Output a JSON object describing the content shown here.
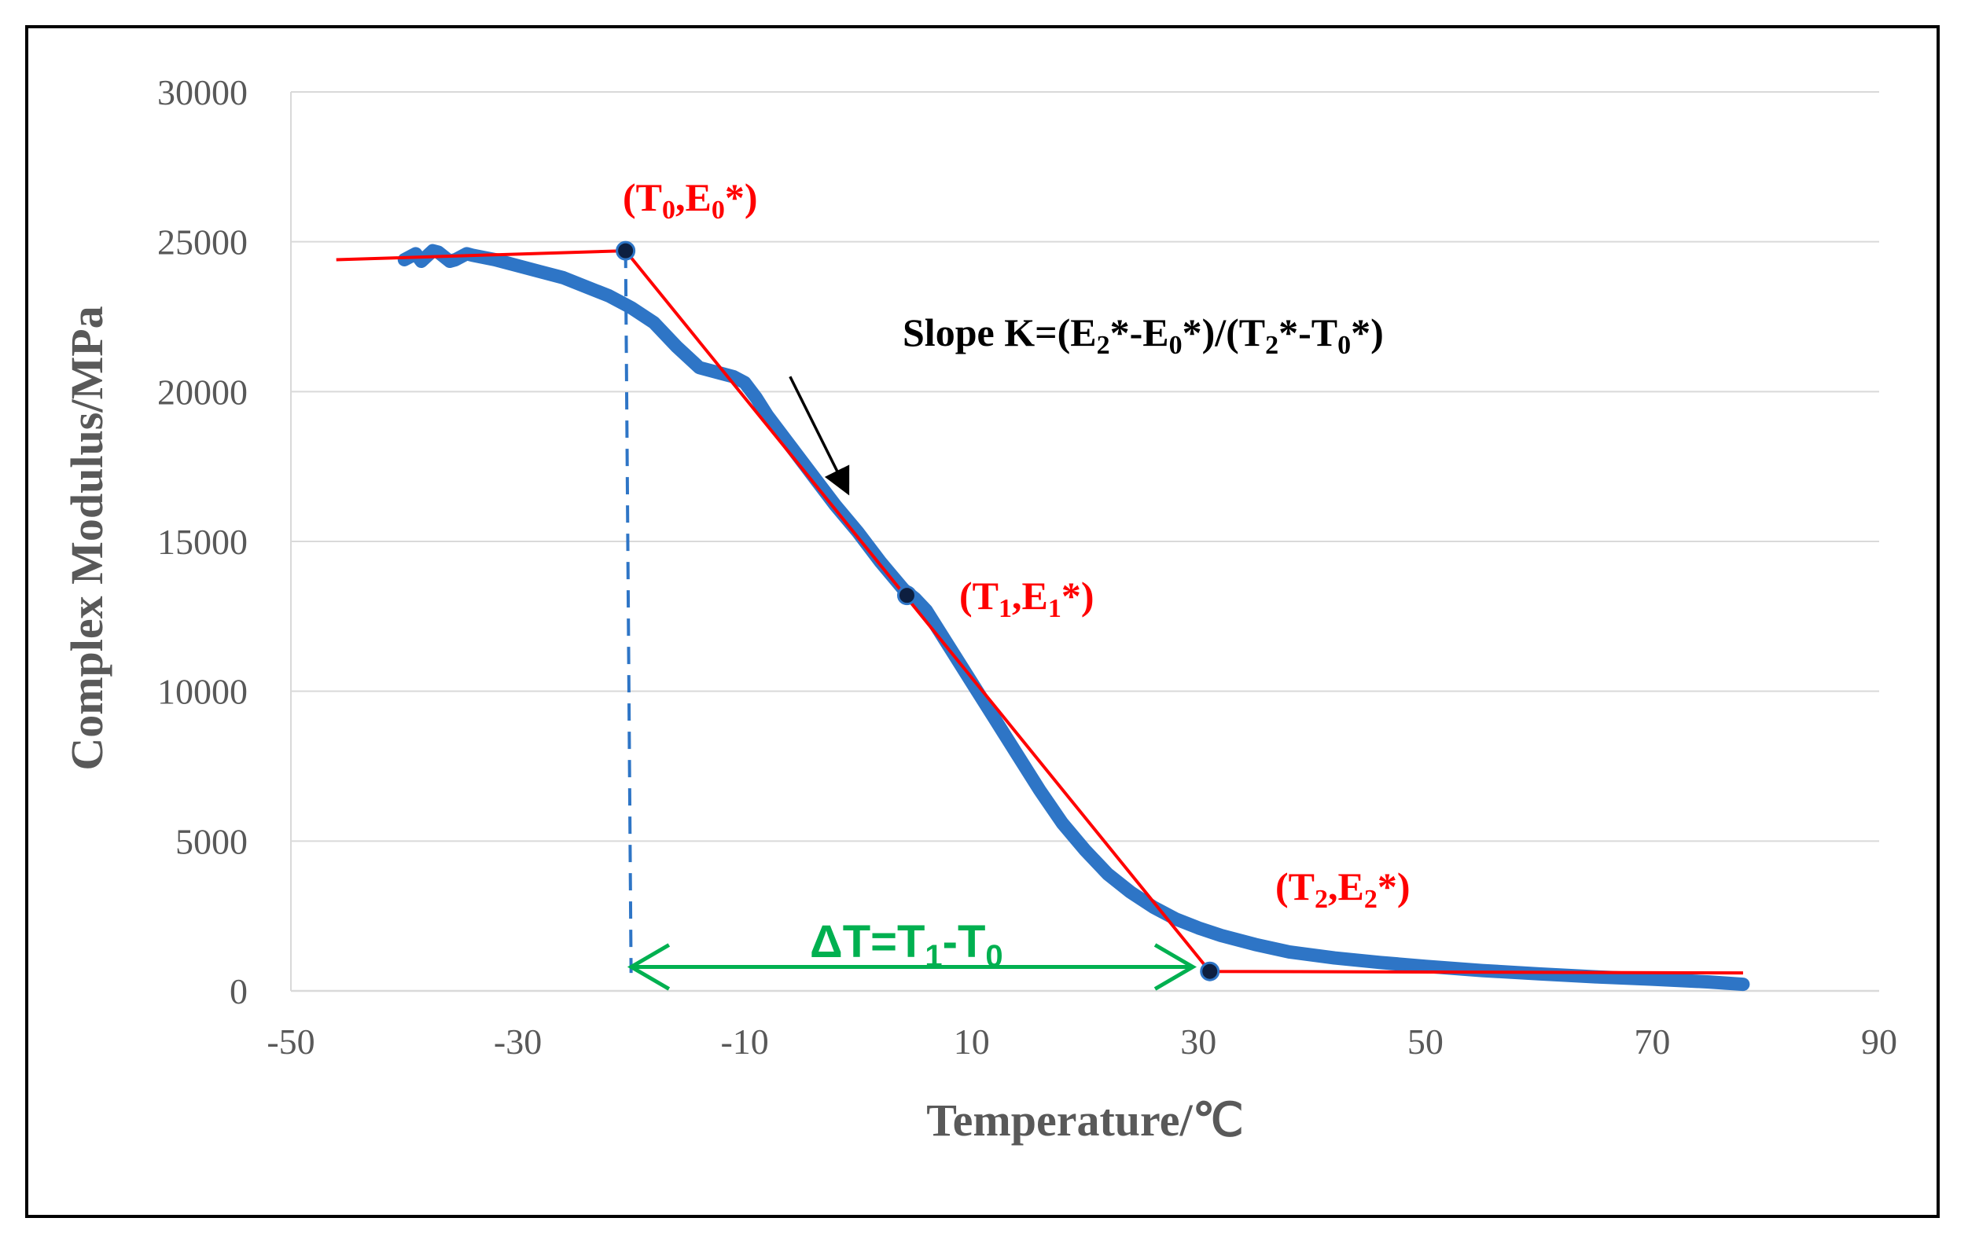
{
  "chart_data": {
    "type": "line",
    "title": "",
    "xlabel": "Temperature/℃",
    "ylabel": "Complex Modulus/MPa",
    "xlim": [
      -50,
      90
    ],
    "ylim": [
      0,
      30000
    ],
    "x_ticks": [
      -50,
      -30,
      -10,
      10,
      30,
      50,
      70,
      90
    ],
    "y_ticks": [
      0,
      5000,
      10000,
      15000,
      20000,
      25000,
      30000
    ],
    "grid": true,
    "series": [
      {
        "name": "Complex modulus",
        "color": "#2e75c6",
        "x": [
          -40,
          -39,
          -38.5,
          -37.5,
          -37,
          -36,
          -35.5,
          -34.5,
          -34,
          -32,
          -30,
          -28,
          -26,
          -24,
          -22,
          -20,
          -18,
          -16,
          -14,
          -12,
          -11,
          -10,
          -9,
          -8,
          -6,
          -4,
          -2,
          0,
          2,
          4,
          5,
          6,
          8,
          10,
          12,
          14,
          16,
          18,
          20,
          22,
          24,
          26,
          28,
          30,
          32,
          35,
          38,
          42,
          46,
          50,
          55,
          60,
          65,
          70,
          75,
          78
        ],
        "y": [
          24400,
          24600,
          24350,
          24700,
          24650,
          24350,
          24400,
          24600,
          24550,
          24400,
          24200,
          24000,
          23800,
          23500,
          23200,
          22800,
          22300,
          21500,
          20800,
          20600,
          20500,
          20300,
          19800,
          19200,
          18200,
          17200,
          16200,
          15300,
          14300,
          13400,
          13100,
          12700,
          11500,
          10300,
          9100,
          7900,
          6700,
          5600,
          4700,
          3900,
          3300,
          2800,
          2400,
          2100,
          1850,
          1550,
          1300,
          1100,
          950,
          820,
          680,
          570,
          470,
          390,
          300,
          220
        ]
      },
      {
        "name": "Tangent lines",
        "color": "#ff0000",
        "x": [
          -46,
          -20.5,
          31,
          78
        ],
        "y": [
          24400,
          24700,
          650,
          600
        ]
      }
    ],
    "key_points": [
      {
        "label": "T0",
        "x": -20.5,
        "y": 24700
      },
      {
        "label": "T1",
        "x": 4.3,
        "y": 13200
      },
      {
        "label": "T2",
        "x": 31,
        "y": 650
      }
    ],
    "vertical_marker": {
      "x": -20.5,
      "y_top": 24700,
      "y_bottom": 600,
      "color": "#2e75c6"
    },
    "delta_arrow": {
      "x_start": -20,
      "x_end": 29.5,
      "y": 800,
      "color": "#00b050"
    },
    "slope_arrow": {
      "from": [
        -6,
        20500
      ],
      "to": [
        -1,
        16700
      ]
    },
    "annotations": {
      "p0": {
        "open": "(T",
        "s1": "0",
        "mid": ",E",
        "s2": "0",
        "close": "*)"
      },
      "p1": {
        "open": "(T",
        "s1": "1",
        "mid": ",E",
        "s2": "1",
        "close": "*)"
      },
      "p2": {
        "open": "(T",
        "s1": "2",
        "mid": ",E",
        "s2": "2",
        "close": "*)"
      },
      "slope": {
        "a": "Slope K=(E",
        "b": "2",
        "c": "*-E",
        "d": "0",
        "e": "*)/(T",
        "f": "2",
        "g": "*-T",
        "h": "0",
        "i": "*)"
      },
      "delta": {
        "a": "ΔT=T",
        "b": "1",
        "c": "-T",
        "d": "0"
      }
    }
  }
}
